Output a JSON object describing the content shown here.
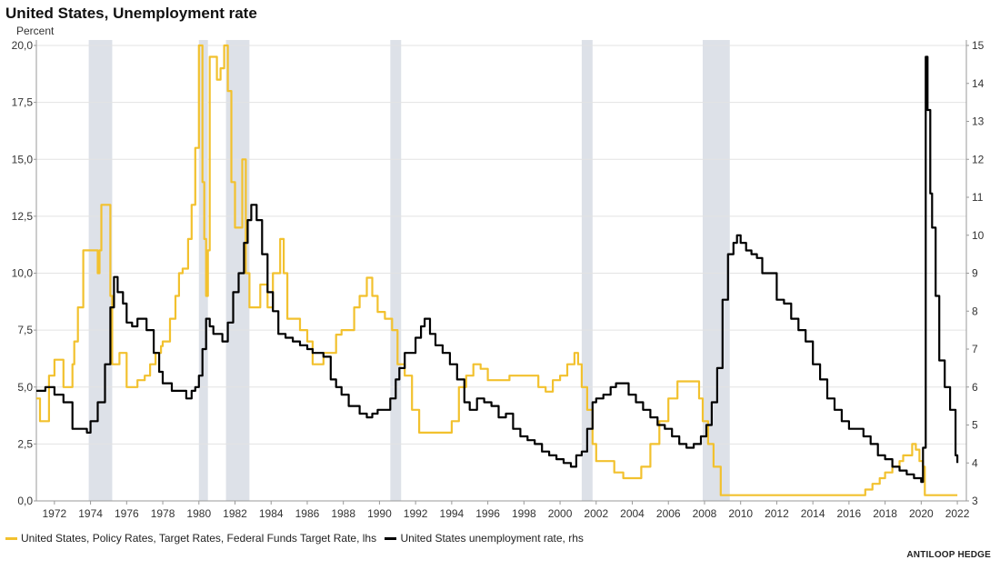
{
  "chart_data": {
    "type": "line",
    "title": "United States, Unemployment rate",
    "ylabel_left": "Percent",
    "ylabel_right": "",
    "xlim": [
      1971.0,
      2022.5
    ],
    "ylim_left": [
      0,
      20
    ],
    "ylim_right": [
      3,
      15
    ],
    "x_ticks": [
      1972,
      1974,
      1976,
      1978,
      1980,
      1982,
      1984,
      1986,
      1988,
      1990,
      1992,
      1994,
      1996,
      1998,
      2000,
      2002,
      2004,
      2006,
      2008,
      2010,
      2012,
      2014,
      2016,
      2018,
      2020,
      2022
    ],
    "x_tick_labels": [
      "1972",
      "1974",
      "1976",
      "1978",
      "1980",
      "1982",
      "1984",
      "1986",
      "1988",
      "1990",
      "1992",
      "1994",
      "1996",
      "1998",
      "2000",
      "2002",
      "2004",
      "2006",
      "2008",
      "2010",
      "2012",
      "2014",
      "2016",
      "2018",
      "2020",
      "2022"
    ],
    "y_ticks_left": [
      0,
      2.5,
      5,
      7.5,
      10,
      12.5,
      15,
      17.5,
      20
    ],
    "y_tick_labels_left": [
      "0,0",
      "2,5",
      "5,0",
      "7,5",
      "10,0",
      "12,5",
      "15,0",
      "17,5",
      "20,0"
    ],
    "y_ticks_right": [
      3,
      4,
      5,
      6,
      7,
      8,
      9,
      10,
      11,
      12,
      13,
      14,
      15
    ],
    "y_tick_labels_right": [
      "3",
      "4",
      "5",
      "6",
      "7",
      "8",
      "9",
      "10",
      "11",
      "12",
      "13",
      "14",
      "15"
    ],
    "grid": true,
    "legend_position": "bottom-left",
    "recessions": [
      [
        1973.9,
        1975.2
      ],
      [
        1980.0,
        1980.5
      ],
      [
        1981.5,
        1982.8
      ],
      [
        1990.6,
        1991.2
      ],
      [
        2001.2,
        2001.8
      ],
      [
        2007.9,
        2009.4
      ]
    ],
    "series": [
      {
        "name": "United States, Policy Rates, Target Rates, Federal Funds Target Rate, lhs",
        "axis": "left",
        "color": "#f2c12e",
        "x": [
          1971.0,
          1971.2,
          1971.6,
          1971.7,
          1972.0,
          1972.5,
          1973.0,
          1973.1,
          1973.3,
          1973.6,
          1973.9,
          1974.0,
          1974.4,
          1974.5,
          1974.6,
          1974.9,
          1975.1,
          1975.2,
          1975.4,
          1975.6,
          1976.0,
          1976.3,
          1976.6,
          1977.0,
          1977.3,
          1977.6,
          1977.9,
          1978.0,
          1978.4,
          1978.7,
          1978.9,
          1979.1,
          1979.4,
          1979.6,
          1979.8,
          1980.0,
          1980.2,
          1980.3,
          1980.4,
          1980.5,
          1980.6,
          1980.9,
          1981.0,
          1981.2,
          1981.4,
          1981.6,
          1981.8,
          1982.0,
          1982.2,
          1982.4,
          1982.6,
          1982.8,
          1983.0,
          1983.4,
          1983.8,
          1984.1,
          1984.5,
          1984.7,
          1984.9,
          1985.2,
          1985.6,
          1986.0,
          1986.3,
          1986.6,
          1986.9,
          1987.3,
          1987.6,
          1987.9,
          1988.3,
          1988.6,
          1988.9,
          1989.3,
          1989.6,
          1989.9,
          1990.3,
          1990.7,
          1991.0,
          1991.4,
          1991.8,
          1992.2,
          1992.6,
          1993.0,
          1993.6,
          1994.0,
          1994.4,
          1994.8,
          1995.2,
          1995.6,
          1996.0,
          1996.5,
          1997.2,
          1997.8,
          1998.5,
          1998.8,
          1999.2,
          1999.6,
          2000.0,
          2000.4,
          2000.8,
          2001.0,
          2001.2,
          2001.5,
          2001.8,
          2002.0,
          2002.5,
          2003.0,
          2003.5,
          2004.0,
          2004.5,
          2005.0,
          2005.5,
          2006.0,
          2006.5,
          2007.0,
          2007.5,
          2007.7,
          2007.9,
          2008.2,
          2008.5,
          2008.9,
          2009.0,
          2015.9,
          2016.9,
          2017.3,
          2017.7,
          2018.0,
          2018.4,
          2018.8,
          2019.0,
          2019.5,
          2019.7,
          2019.9,
          2020.1,
          2020.2,
          2022.0
        ],
        "values": [
          4.5,
          3.5,
          3.5,
          5.5,
          6.2,
          5.0,
          6.0,
          7.0,
          8.5,
          11.0,
          11.0,
          11.0,
          10.0,
          11.0,
          13.0,
          13.0,
          9.0,
          6.0,
          6.0,
          6.5,
          5.0,
          5.0,
          5.3,
          5.5,
          6.0,
          6.5,
          6.8,
          7.0,
          8.0,
          9.0,
          10.0,
          10.2,
          11.5,
          13.0,
          15.5,
          20.0,
          14.0,
          11.5,
          9.0,
          11.0,
          19.5,
          19.5,
          18.5,
          19.0,
          20.0,
          18.0,
          14.0,
          12.0,
          12.0,
          15.0,
          10.0,
          8.5,
          8.5,
          9.5,
          8.5,
          10.0,
          11.5,
          10.0,
          8.0,
          8.0,
          7.5,
          7.0,
          6.0,
          6.0,
          6.5,
          6.5,
          7.3,
          7.5,
          7.5,
          8.5,
          9.0,
          9.8,
          9.0,
          8.3,
          8.0,
          7.5,
          6.0,
          5.5,
          4.0,
          3.0,
          3.0,
          3.0,
          3.0,
          3.5,
          5.0,
          5.5,
          6.0,
          5.8,
          5.3,
          5.3,
          5.5,
          5.5,
          5.5,
          5.0,
          4.8,
          5.3,
          5.5,
          6.0,
          6.5,
          6.0,
          5.0,
          4.0,
          2.5,
          1.75,
          1.75,
          1.25,
          1.0,
          1.0,
          1.5,
          2.5,
          3.5,
          4.5,
          5.25,
          5.25,
          5.25,
          4.5,
          3.5,
          2.5,
          1.5,
          0.25,
          0.25,
          0.25,
          0.5,
          0.75,
          1.0,
          1.25,
          1.5,
          1.75,
          2.0,
          2.5,
          2.25,
          1.75,
          1.5,
          0.25,
          0.25
        ]
      },
      {
        "name": "United States unemployment rate, rhs",
        "axis": "right",
        "color": "#000000",
        "x": [
          1971.0,
          1971.5,
          1972.0,
          1972.5,
          1973.0,
          1973.3,
          1973.8,
          1974.0,
          1974.4,
          1974.8,
          1975.1,
          1975.3,
          1975.5,
          1975.8,
          1976.0,
          1976.3,
          1976.6,
          1976.9,
          1977.1,
          1977.5,
          1977.8,
          1978.0,
          1978.5,
          1978.9,
          1979.3,
          1979.6,
          1979.8,
          1980.0,
          1980.2,
          1980.4,
          1980.6,
          1980.8,
          1981.0,
          1981.3,
          1981.6,
          1981.9,
          1982.2,
          1982.5,
          1982.7,
          1982.9,
          1983.2,
          1983.5,
          1983.8,
          1984.1,
          1984.4,
          1984.8,
          1985.2,
          1985.6,
          1986.0,
          1986.3,
          1986.6,
          1986.9,
          1987.3,
          1987.6,
          1987.9,
          1988.3,
          1988.6,
          1988.9,
          1989.3,
          1989.6,
          1989.9,
          1990.3,
          1990.6,
          1990.9,
          1991.1,
          1991.4,
          1991.7,
          1992.0,
          1992.3,
          1992.5,
          1992.8,
          1993.1,
          1993.5,
          1993.9,
          1994.3,
          1994.7,
          1995.0,
          1995.4,
          1995.8,
          1996.2,
          1996.6,
          1997.0,
          1997.4,
          1997.8,
          1998.2,
          1998.6,
          1999.0,
          1999.4,
          1999.8,
          2000.2,
          2000.6,
          2000.9,
          2001.2,
          2001.5,
          2001.8,
          2002.0,
          2002.4,
          2002.8,
          2003.1,
          2003.5,
          2003.8,
          2004.2,
          2004.6,
          2005.0,
          2005.4,
          2005.8,
          2006.2,
          2006.6,
          2007.0,
          2007.4,
          2007.8,
          2008.1,
          2008.4,
          2008.7,
          2009.0,
          2009.3,
          2009.6,
          2009.8,
          2010.0,
          2010.3,
          2010.6,
          2010.9,
          2011.2,
          2011.6,
          2012.0,
          2012.4,
          2012.8,
          2013.2,
          2013.6,
          2014.0,
          2014.4,
          2014.8,
          2015.2,
          2015.6,
          2016.0,
          2016.4,
          2016.8,
          2017.2,
          2017.6,
          2018.0,
          2018.4,
          2018.8,
          2019.2,
          2019.6,
          2020.0,
          2020.1,
          2020.25,
          2020.35,
          2020.5,
          2020.6,
          2020.8,
          2021.0,
          2021.3,
          2021.6,
          2021.9,
          2022.0
        ],
        "values": [
          5.9,
          6.0,
          5.8,
          5.6,
          4.9,
          4.9,
          4.8,
          5.1,
          5.6,
          6.6,
          8.1,
          8.9,
          8.5,
          8.2,
          7.7,
          7.6,
          7.8,
          7.8,
          7.5,
          6.9,
          6.4,
          6.1,
          5.9,
          5.9,
          5.7,
          5.9,
          6.0,
          6.3,
          7.0,
          7.8,
          7.6,
          7.4,
          7.4,
          7.2,
          7.7,
          8.5,
          9.0,
          9.8,
          10.4,
          10.8,
          10.4,
          9.5,
          8.5,
          8.0,
          7.4,
          7.3,
          7.2,
          7.1,
          7.0,
          6.9,
          6.9,
          6.8,
          6.2,
          6.0,
          5.8,
          5.5,
          5.5,
          5.3,
          5.2,
          5.3,
          5.4,
          5.4,
          5.7,
          6.2,
          6.5,
          6.9,
          6.9,
          7.3,
          7.6,
          7.8,
          7.4,
          7.1,
          6.9,
          6.6,
          6.2,
          5.6,
          5.4,
          5.7,
          5.6,
          5.5,
          5.2,
          5.3,
          4.9,
          4.7,
          4.6,
          4.5,
          4.3,
          4.2,
          4.1,
          4.0,
          3.9,
          4.2,
          4.3,
          4.9,
          5.6,
          5.7,
          5.8,
          6.0,
          6.1,
          6.1,
          5.8,
          5.6,
          5.4,
          5.2,
          5.0,
          4.9,
          4.7,
          4.5,
          4.4,
          4.5,
          4.7,
          5.0,
          5.6,
          6.5,
          8.3,
          9.5,
          9.8,
          10.0,
          9.8,
          9.6,
          9.5,
          9.4,
          9.0,
          9.0,
          8.3,
          8.2,
          7.8,
          7.5,
          7.2,
          6.6,
          6.2,
          5.7,
          5.4,
          5.1,
          4.9,
          4.9,
          4.7,
          4.5,
          4.2,
          4.1,
          3.9,
          3.8,
          3.7,
          3.6,
          3.5,
          4.4,
          14.7,
          13.3,
          11.1,
          10.2,
          8.4,
          6.7,
          6.0,
          5.4,
          4.2,
          4.0
        ]
      }
    ]
  },
  "legend": {
    "item1": "United States, Policy Rates, Target Rates, Federal Funds Target Rate, lhs",
    "item2": "United States unemployment rate, rhs"
  },
  "source": "ANTILOOP HEDGE"
}
